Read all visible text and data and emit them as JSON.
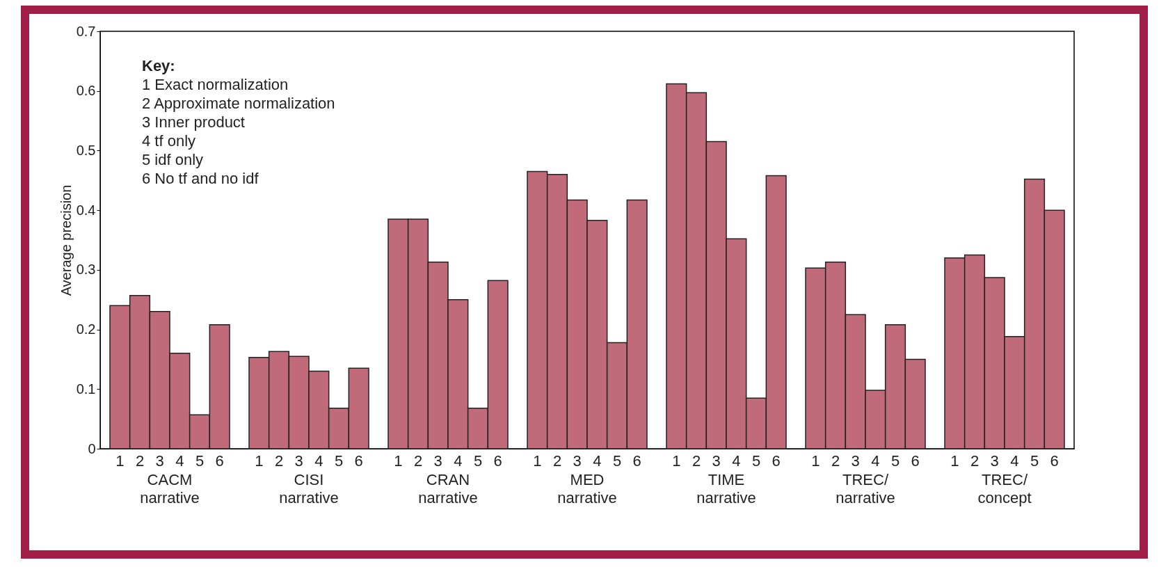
{
  "chart_data": {
    "type": "bar",
    "ylabel": "Average precision",
    "grid": false,
    "categories": [
      "CACM\nnarrative",
      "CISI\nnarrative",
      "CRAN\nnarrative",
      "MED\nnarrative",
      "TIME\nnarrative",
      "TREC/\nnarrative",
      "TREC/\nconcept"
    ],
    "ylim": [
      0,
      0.7
    ],
    "yticks": [
      {
        "value": 0,
        "label": "0"
      },
      {
        "value": 0.1,
        "label": "0.1"
      },
      {
        "value": 0.2,
        "label": "0.2"
      },
      {
        "value": 0.3,
        "label": "0.3"
      },
      {
        "value": 0.4,
        "label": "0.4"
      },
      {
        "value": 0.5,
        "label": "0.5"
      },
      {
        "value": 0.6,
        "label": "0.6"
      },
      {
        "value": 0.7,
        "label": "0.7"
      }
    ],
    "annotations": [
      "Key:",
      "1 Exact normalization",
      "2 Approximate normalization",
      "3 Inner product",
      "4 tf only",
      "5 idf only",
      "6 No tf and no idf"
    ],
    "series": [
      {
        "name": "1",
        "color": "#c06a7a",
        "values": [
          0.24,
          0.153,
          0.385,
          0.465,
          0.612,
          0.303,
          0.32
        ]
      },
      {
        "name": "2",
        "color": "#c06a7a",
        "values": [
          0.257,
          0.163,
          0.385,
          0.46,
          0.597,
          0.313,
          0.325
        ]
      },
      {
        "name": "3",
        "color": "#c06a7a",
        "values": [
          0.23,
          0.155,
          0.313,
          0.417,
          0.515,
          0.225,
          0.287
        ]
      },
      {
        "name": "4",
        "color": "#c06a7a",
        "values": [
          0.16,
          0.13,
          0.25,
          0.383,
          0.352,
          0.098,
          0.188
        ]
      },
      {
        "name": "5",
        "color": "#c06a7a",
        "values": [
          0.057,
          0.068,
          0.068,
          0.178,
          0.085,
          0.208,
          0.452
        ]
      },
      {
        "name": "6",
        "color": "#c06a7a",
        "values": [
          0.208,
          0.135,
          0.282,
          0.417,
          0.458,
          0.15,
          0.4
        ]
      }
    ]
  }
}
